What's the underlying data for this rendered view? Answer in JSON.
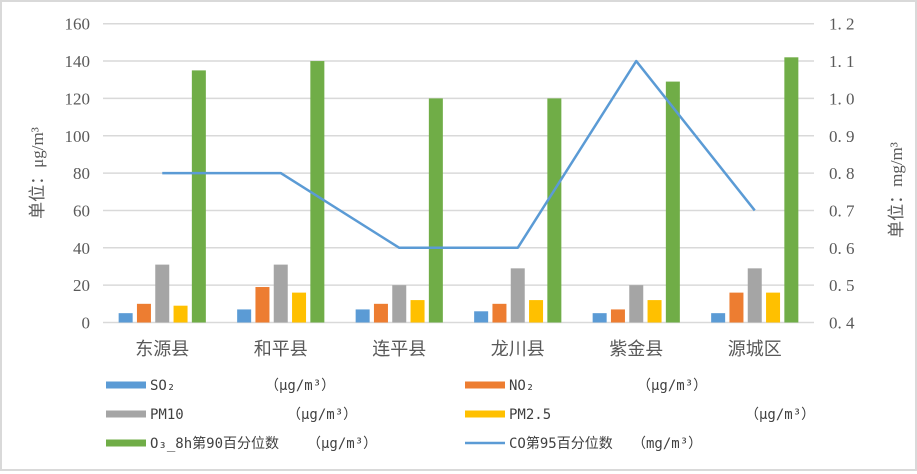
{
  "chart_data": {
    "type": "bar",
    "subtype": "grouped bar with secondary-axis line",
    "title": "",
    "categories": [
      "东源县",
      "和平县",
      "连平县",
      "龙川县",
      "紫金县",
      "源城区"
    ],
    "series": [
      {
        "name": "SO₂",
        "unit": "（μg/m³）",
        "type": "bar",
        "axis": "left",
        "color": "#5b9bd5",
        "values": [
          5,
          7,
          7,
          6,
          5,
          5
        ]
      },
      {
        "name": "NO₂",
        "unit": "（μg/m³）",
        "type": "bar",
        "axis": "left",
        "color": "#ed7d31",
        "values": [
          10,
          19,
          10,
          10,
          7,
          16
        ]
      },
      {
        "name": "PM10",
        "unit": "（μg/m³）",
        "type": "bar",
        "axis": "left",
        "color": "#a5a5a5",
        "values": [
          31,
          31,
          20,
          29,
          20,
          29
        ]
      },
      {
        "name": "PM2.5",
        "unit": "（μg/m³）",
        "type": "bar",
        "axis": "left",
        "color": "#ffc000",
        "values": [
          9,
          16,
          12,
          12,
          12,
          16
        ]
      },
      {
        "name": "O₃_8h第90百分位数",
        "unit": "（μg/m³）",
        "type": "bar",
        "axis": "left",
        "color": "#70ad47",
        "values": [
          135,
          140,
          120,
          120,
          129,
          142
        ]
      },
      {
        "name": "CO第95百分位数",
        "unit": "（mg/m³）",
        "type": "line",
        "axis": "right",
        "color": "#5b9bd5",
        "values": [
          0.8,
          0.8,
          0.6,
          0.6,
          1.1,
          0.7
        ]
      }
    ],
    "xlabel": "",
    "ylabel": "单位：μg/m³",
    "ylabel_right": "单位：mg/m³",
    "ylim": [
      0,
      160
    ],
    "yticks": [
      "0",
      "20",
      "40",
      "60",
      "80",
      "100",
      "120",
      "140",
      "160"
    ],
    "ylim_right": [
      0.4,
      1.2
    ],
    "yticks_right": [
      "0. 4",
      "0. 5",
      "0. 6",
      "0. 7",
      "0. 8",
      "0. 9",
      "1. 0",
      "1. 1",
      "1. 2"
    ],
    "grid": true,
    "legend_position": "bottom"
  },
  "legend": [
    {
      "label": "SO₂",
      "unit": "（μg/m³）"
    },
    {
      "label": "NO₂",
      "unit": "（μg/m³）"
    },
    {
      "label": "PM10",
      "unit": "（μg/m³）"
    },
    {
      "label": "PM2.5",
      "unit": "（μg/m³）"
    },
    {
      "label": "O₃_8h第90百分位数",
      "unit": "（μg/m³）"
    },
    {
      "label": "CO第95百分位数",
      "unit": "（mg/m³）"
    }
  ]
}
